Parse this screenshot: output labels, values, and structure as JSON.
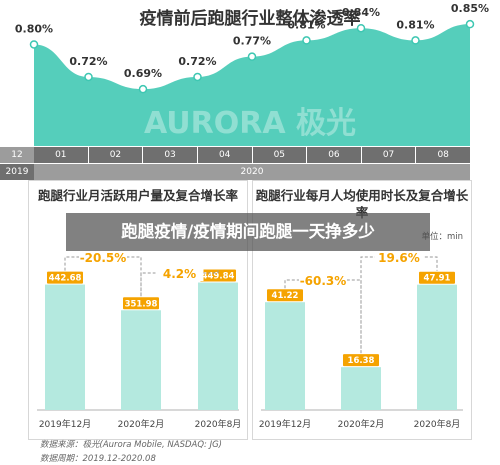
{
  "page": {
    "title": "疫情前后跑腿行业整体渗透率",
    "watermark": "AURORA 极光",
    "overlay_banner": "跑腿疫情/疫情期间跑腿一天挣多少",
    "year_row": {
      "label_2019": "2019",
      "label_2020": "2020"
    },
    "source_note": "数据来源：极光(Aurora Mobile, NASDAQ: JG)",
    "period_note": "数据周期：2019.12-2020.08"
  },
  "colors": {
    "teal": "#3ec7b2",
    "teal_light": "#b4e9df",
    "teal_label": "#2ab39f",
    "gold": "#f5a300",
    "dark_axis": "#6f6f6f",
    "light_axis": "#9c9c9c"
  },
  "chart_data": [
    {
      "type": "area",
      "title": "疫情前后跑腿行业整体渗透率",
      "categories": [
        "12",
        "01",
        "02",
        "03",
        "04",
        "05",
        "06",
        "07",
        "08"
      ],
      "values": [
        0.8,
        0.72,
        0.69,
        0.72,
        0.77,
        0.81,
        0.84,
        0.81,
        0.85
      ],
      "value_labels": [
        "0.80%",
        "0.72%",
        "0.69%",
        "0.72%",
        "0.77%",
        "0.81%",
        "0.84%",
        "0.81%",
        "0.85%"
      ],
      "ylim": [
        0.55,
        0.88
      ],
      "xlabel": "",
      "ylabel": ""
    },
    {
      "type": "bar",
      "title": "跑腿行业月活跃用户量及复合增长率",
      "categories": [
        "2019年12月",
        "2020年2月",
        "2020年8月"
      ],
      "values": [
        442.68,
        351.98,
        449.84
      ],
      "value_labels": [
        "442.68",
        "351.98",
        "449.84"
      ],
      "growth_labels": [
        "-20.5%",
        "4.2%"
      ],
      "ylim": [
        0,
        600
      ],
      "xlabel": "",
      "ylabel": ""
    },
    {
      "type": "bar",
      "title": "跑腿行业每月人均使用时长及复合增长率",
      "unit": "单位：min",
      "categories": [
        "2019年12月",
        "2020年2月",
        "2020年8月"
      ],
      "values": [
        41.22,
        16.38,
        47.91
      ],
      "value_labels": [
        "41.22",
        "16.38",
        "47.91"
      ],
      "growth_labels": [
        "-60.3%",
        "19.6%"
      ],
      "ylim": [
        0,
        65
      ],
      "xlabel": "",
      "ylabel": ""
    }
  ]
}
